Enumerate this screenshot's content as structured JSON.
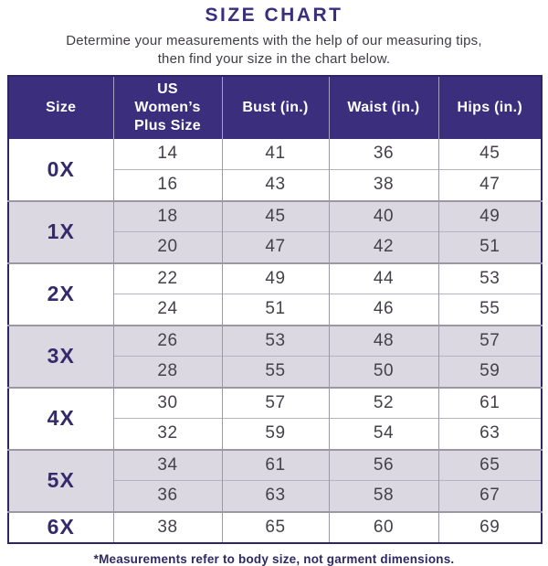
{
  "page": {
    "title": "SIZE CHART",
    "subtitle_line1": "Determine your measurements with the help of our measuring tips,",
    "subtitle_line2": "then find your size in the chart below.",
    "footnote": "*Measurements refer to body size, not garment dimensions."
  },
  "colors": {
    "header_bg": "#3B2E7D",
    "title_text": "#3B2E7D",
    "size_label_text": "#352A6B",
    "body_text": "#45414A",
    "shaded_row_bg": "#DBD8E2",
    "outer_border": "#2E2566",
    "group_divider": "#9B97A3"
  },
  "chart_data": {
    "type": "table",
    "title": "SIZE CHART",
    "columns": [
      "Size",
      "US Women’s Plus Size",
      "Bust (in.)",
      "Waist (in.)",
      "Hips (in.)"
    ],
    "rows": [
      [
        "0X",
        "14",
        "41",
        "36",
        "45"
      ],
      [
        "0X",
        "16",
        "43",
        "38",
        "47"
      ],
      [
        "1X",
        "18",
        "45",
        "40",
        "49"
      ],
      [
        "1X",
        "20",
        "47",
        "42",
        "51"
      ],
      [
        "2X",
        "22",
        "49",
        "44",
        "53"
      ],
      [
        "2X",
        "24",
        "51",
        "46",
        "55"
      ],
      [
        "3X",
        "26",
        "53",
        "48",
        "57"
      ],
      [
        "3X",
        "28",
        "55",
        "50",
        "59"
      ],
      [
        "4X",
        "30",
        "57",
        "52",
        "61"
      ],
      [
        "4X",
        "32",
        "59",
        "54",
        "63"
      ],
      [
        "5X",
        "34",
        "61",
        "56",
        "65"
      ],
      [
        "5X",
        "36",
        "63",
        "58",
        "67"
      ],
      [
        "6X",
        "38",
        "65",
        "60",
        "69"
      ]
    ],
    "groups": [
      {
        "size": "0X",
        "shaded": false,
        "rows": [
          [
            "14",
            "41",
            "36",
            "45"
          ],
          [
            "16",
            "43",
            "38",
            "47"
          ]
        ]
      },
      {
        "size": "1X",
        "shaded": true,
        "rows": [
          [
            "18",
            "45",
            "40",
            "49"
          ],
          [
            "20",
            "47",
            "42",
            "51"
          ]
        ]
      },
      {
        "size": "2X",
        "shaded": false,
        "rows": [
          [
            "22",
            "49",
            "44",
            "53"
          ],
          [
            "24",
            "51",
            "46",
            "55"
          ]
        ]
      },
      {
        "size": "3X",
        "shaded": true,
        "rows": [
          [
            "26",
            "53",
            "48",
            "57"
          ],
          [
            "28",
            "55",
            "50",
            "59"
          ]
        ]
      },
      {
        "size": "4X",
        "shaded": false,
        "rows": [
          [
            "30",
            "57",
            "52",
            "61"
          ],
          [
            "32",
            "59",
            "54",
            "63"
          ]
        ]
      },
      {
        "size": "5X",
        "shaded": true,
        "rows": [
          [
            "34",
            "61",
            "56",
            "65"
          ],
          [
            "36",
            "63",
            "58",
            "67"
          ]
        ]
      },
      {
        "size": "6X",
        "shaded": false,
        "rows": [
          [
            "38",
            "65",
            "60",
            "69"
          ]
        ]
      }
    ]
  }
}
